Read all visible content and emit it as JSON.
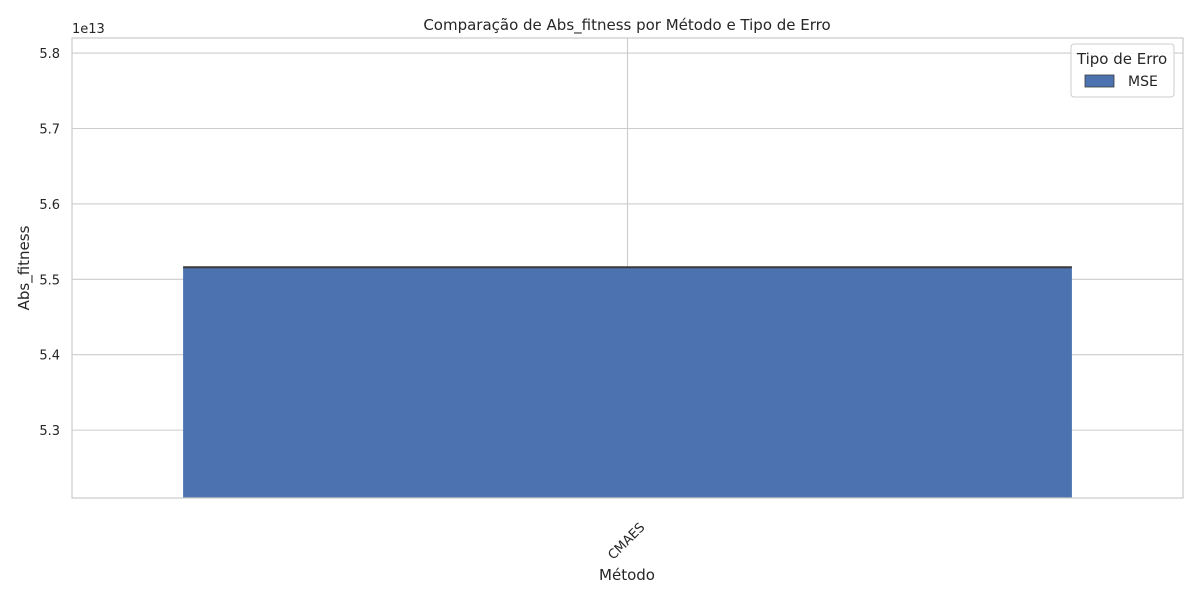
{
  "chart_data": {
    "type": "bar",
    "title": "Comparação de Abs_fitness por Método e Tipo de Erro",
    "xlabel": "Método",
    "ylabel": "Abs_fitness",
    "offset_label": "1e13",
    "categories": [
      "CMAES"
    ],
    "series": [
      {
        "name": "MSE",
        "values": [
          55160000000000
        ],
        "color": "#4c72b0"
      }
    ],
    "ylim": [
      52100000000000,
      58200000000000
    ],
    "yticks": [
      53000000000000,
      54000000000000,
      55000000000000,
      56000000000000,
      57000000000000,
      58000000000000
    ],
    "ytick_labels": [
      "5.3",
      "5.4",
      "5.5",
      "5.6",
      "5.7",
      "5.8"
    ],
    "grid": true,
    "legend": {
      "title": "Tipo de Erro",
      "position": "top-right"
    }
  }
}
